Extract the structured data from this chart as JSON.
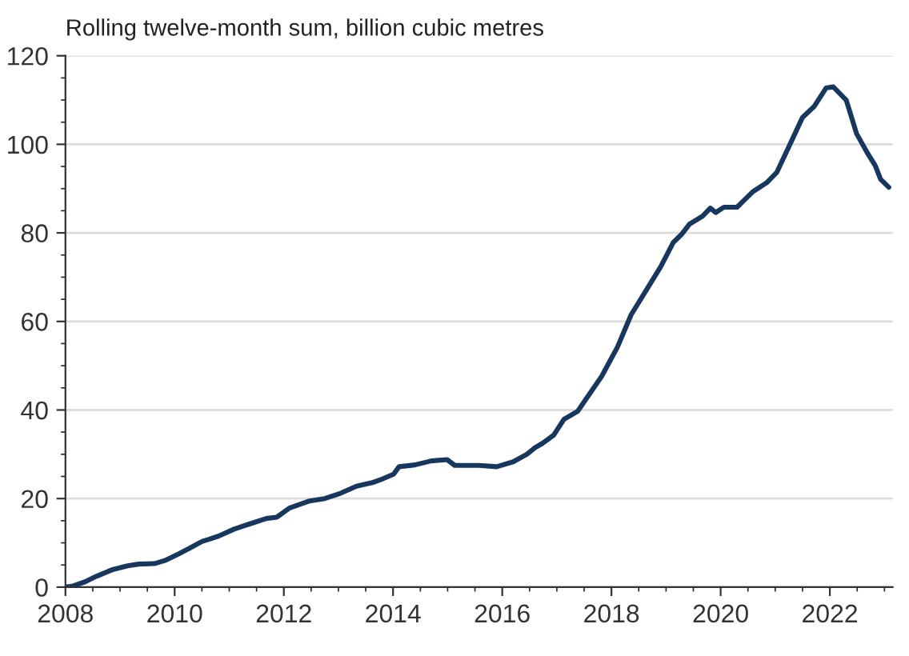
{
  "chart_data": {
    "type": "line",
    "subtitle": "Rolling twelve-month sum, billion cubic metres",
    "series": [
      {
        "color": "#17375e",
        "x": [
          2008.0,
          2008.12,
          2008.36,
          2008.56,
          2008.85,
          2009.14,
          2009.34,
          2009.63,
          2009.82,
          2010.07,
          2010.26,
          2010.5,
          2010.8,
          2011.09,
          2011.38,
          2011.68,
          2011.87,
          2012.11,
          2012.45,
          2012.75,
          2013.04,
          2013.33,
          2013.62,
          2013.82,
          2014.01,
          2014.11,
          2014.4,
          2014.7,
          2014.99,
          2015.13,
          2015.57,
          2015.9,
          2016.2,
          2016.45,
          2016.6,
          2016.74,
          2016.94,
          2017.13,
          2017.38,
          2017.52,
          2017.82,
          2018.11,
          2018.36,
          2018.6,
          2018.9,
          2019.13,
          2019.28,
          2019.43,
          2019.67,
          2019.81,
          2019.91,
          2020.06,
          2020.3,
          2020.59,
          2020.84,
          2021.03,
          2021.27,
          2021.5,
          2021.71,
          2021.93,
          2022.06,
          2022.3,
          2022.49,
          2022.68,
          2022.83,
          2022.93,
          2023.08
        ],
        "values": [
          0,
          0.2,
          1.2,
          2.4,
          3.9,
          4.8,
          5.2,
          5.3,
          6,
          7.5,
          8.7,
          10.3,
          11.5,
          13.1,
          14.3,
          15.5,
          15.8,
          17.9,
          19.4,
          20,
          21.2,
          22.8,
          23.6,
          24.5,
          25.5,
          27.2,
          27.6,
          28.5,
          28.8,
          27.5,
          27.5,
          27.2,
          28.3,
          30,
          31.5,
          32.5,
          34.3,
          37.9,
          39.7,
          42.2,
          47.6,
          54.2,
          61.5,
          66.3,
          72.3,
          77.8,
          79.6,
          82,
          83.8,
          85.6,
          84.6,
          85.8,
          85.8,
          89.3,
          91.3,
          93.7,
          100,
          106.1,
          108.5,
          112.7,
          113,
          110,
          102.4,
          98.2,
          95.2,
          92.1,
          90.3
        ]
      }
    ],
    "xlim": [
      2008,
      2023.15
    ],
    "xticks": [
      2008,
      2010,
      2012,
      2014,
      2016,
      2018,
      2020,
      2022
    ],
    "ylim": [
      0,
      120
    ],
    "yticks": [
      0,
      20,
      40,
      60,
      80,
      100,
      120
    ],
    "grid": "y",
    "legend": false,
    "marker": "none",
    "line_style": "solid"
  }
}
